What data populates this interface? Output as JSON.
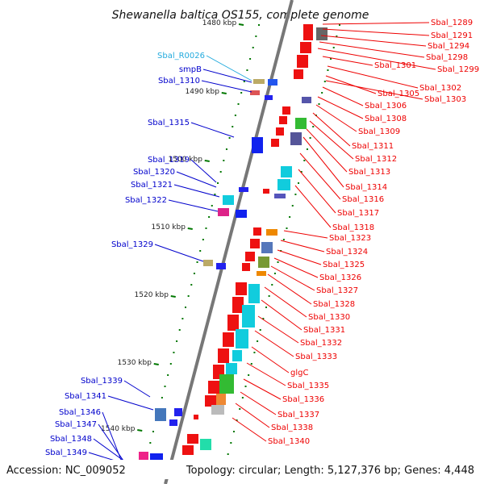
{
  "title": "Shewanella baltica OS155, complete genome",
  "accession": "Accession: NC_009052",
  "topology": "Topology: circular; Length: 5,127,376 bp; Genes: 4,448",
  "colors": {
    "backbone": "#777777",
    "left_label": "#0000cc",
    "rna_label": "#22aadd",
    "right_label": "#ee0000",
    "tick": "#007700"
  },
  "scale_labels": [
    "1480 kbp",
    "1490 kbp",
    "1500 kbp",
    "1510 kbp",
    "1520 kbp",
    "1530 kbp",
    "1540 kbp"
  ],
  "left_labels": [
    "Sbal_R0026",
    "smpB",
    "Sbal_1310",
    "Sbal_1315",
    "Sbal_1319",
    "Sbal_1320",
    "Sbal_1321",
    "Sbal_1322",
    "Sbal_1329",
    "Sbal_1339",
    "Sbal_1341",
    "Sbal_1346",
    "Sbal_1347",
    "Sbal_1348",
    "Sbal_1349"
  ],
  "right_labels": [
    "Sbal_1289",
    "Sbal_1291",
    "Sbal_1294",
    "Sbal_1298",
    "Sbal_1299",
    "Sbal_1301",
    "Sbal_1302",
    "Sbal_1305",
    "Sbal_1303",
    "Sbal_1306",
    "Sbal_1308",
    "Sbal_1309",
    "Sbal_1311",
    "Sbal_1312",
    "Sbal_1313",
    "Sbal_1314",
    "Sbal_1316",
    "Sbal_1317",
    "Sbal_1318",
    "Sbal_1323",
    "Sbal_1324",
    "Sbal_1325",
    "Sbal_1326",
    "Sbal_1327",
    "Sbal_1328",
    "Sbal_1330",
    "Sbal_1331",
    "Sbal_1332",
    "Sbal_1333",
    "glgC",
    "Sbal_1335",
    "Sbal_1336",
    "Sbal_1337",
    "Sbal_1338",
    "Sbal_1340"
  ]
}
